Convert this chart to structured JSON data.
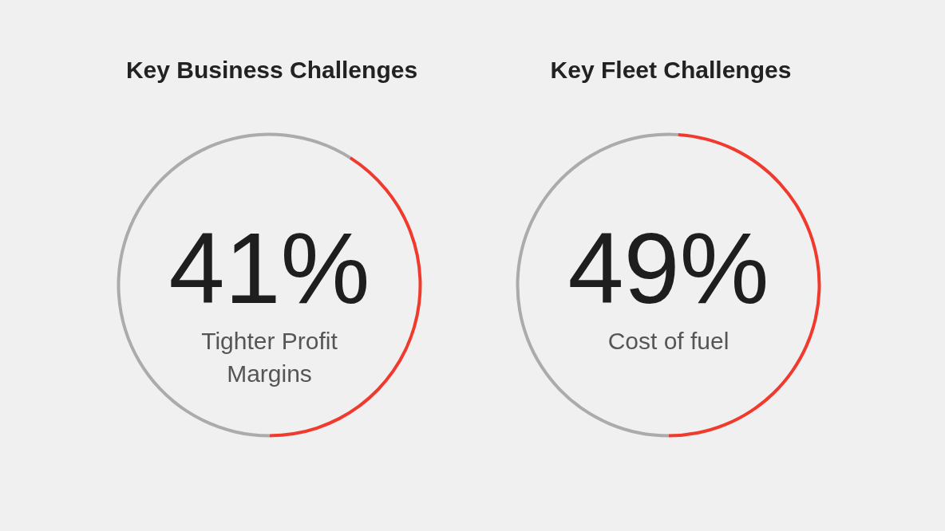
{
  "chart_data": [
    {
      "type": "donut",
      "title": "Key Business Challenges",
      "categories": [
        "Tighter Profit Margins",
        null
      ],
      "values": [
        41,
        59
      ],
      "colors": [
        "#f03a2e",
        "#ababab"
      ],
      "value_labels": [
        "41%",
        null
      ]
    },
    {
      "type": "donut",
      "title": "Key Fleet Challenges",
      "categories": [
        "Cost of fuel",
        null
      ],
      "values": [
        49,
        51
      ],
      "colors": [
        "#f03a2e",
        "#ababab"
      ],
      "value_labels": [
        "49%",
        null
      ]
    }
  ]
}
